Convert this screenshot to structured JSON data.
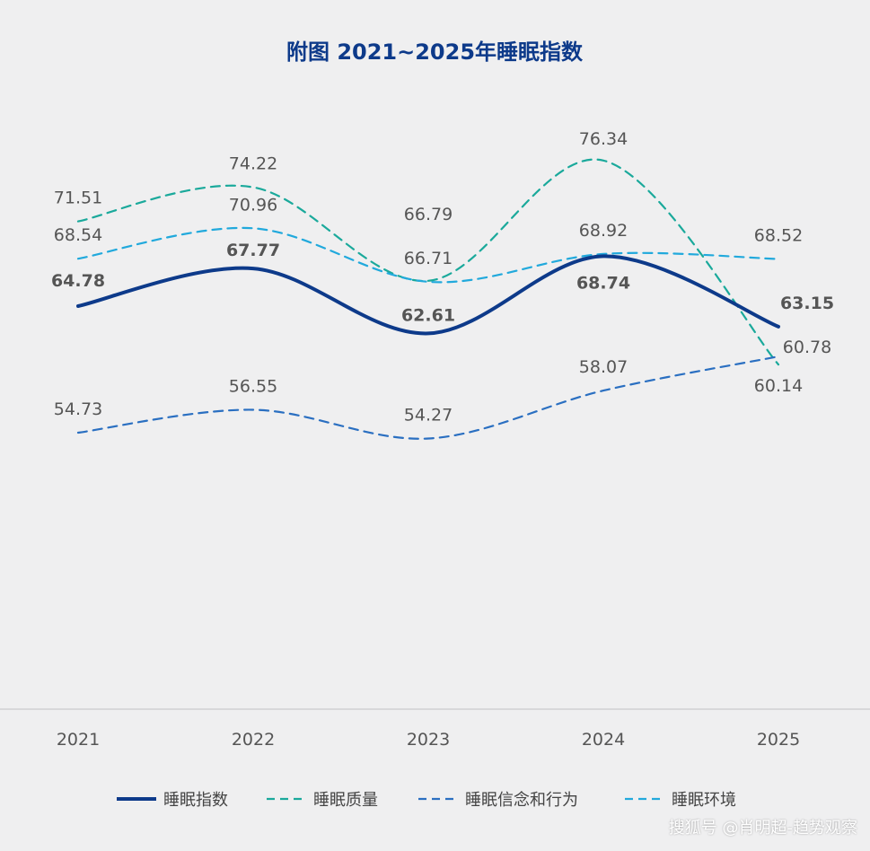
{
  "chart_data": {
    "type": "line",
    "title": "附图  2021~2025年睡眠指数",
    "xlabel": "",
    "ylabel": "",
    "categories": [
      "2021",
      "2022",
      "2023",
      "2024",
      "2025"
    ],
    "ylim": [
      45,
      80
    ],
    "grid": false,
    "legend_position": "bottom",
    "series": [
      {
        "name": "睡眠指数",
        "values": [
          64.78,
          67.77,
          62.61,
          68.74,
          63.15
        ],
        "color": "#0d3a8a",
        "style": "solid",
        "labels_bold": true
      },
      {
        "name": "睡眠质量",
        "values": [
          71.51,
          74.22,
          66.79,
          76.34,
          60.14
        ],
        "color": "#1aa99b",
        "style": "dashed",
        "labels_bold": false
      },
      {
        "name": "睡眠信念和行为",
        "values": [
          54.73,
          56.55,
          54.27,
          58.07,
          60.78
        ],
        "color": "#2a6fc1",
        "style": "dashed",
        "labels_bold": false
      },
      {
        "name": "睡眠环境",
        "values": [
          68.54,
          70.96,
          66.71,
          68.92,
          68.52
        ],
        "color": "#21a9dc",
        "style": "dashed",
        "labels_bold": false
      }
    ]
  },
  "watermark": "搜狐号 @肖明超-趋势观察",
  "colors": {
    "background": "#efeff0",
    "title": "#0d3a8a",
    "axis": "#d0d0d3",
    "label": "#555555"
  }
}
